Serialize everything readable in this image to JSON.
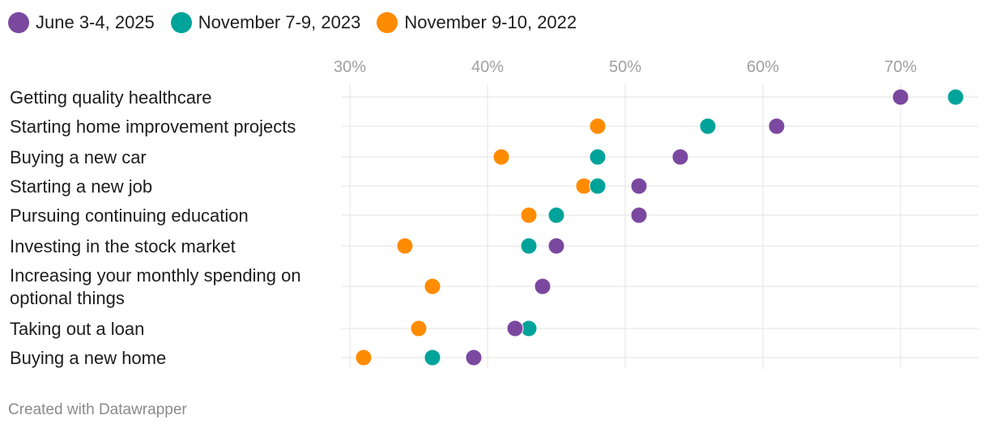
{
  "chart_data": {
    "type": "scatter",
    "orientation": "horizontal-dot-plot",
    "xlim": [
      30,
      75
    ],
    "ticks": [
      {
        "value": 30,
        "label": "30%"
      },
      {
        "value": 40,
        "label": "40%"
      },
      {
        "value": 50,
        "label": "50%"
      },
      {
        "value": 60,
        "label": "60%"
      },
      {
        "value": 70,
        "label": "70%"
      }
    ],
    "grid": true,
    "legend_position": "top-left",
    "categories": [
      [
        "Getting quality healthcare"
      ],
      [
        "Starting home improvement projects"
      ],
      [
        "Buying a new car"
      ],
      [
        "Starting a new job"
      ],
      [
        "Pursuing continuing education"
      ],
      [
        "Investing in the stock market"
      ],
      [
        "Increasing your monthly spending on",
        "optional things"
      ],
      [
        "Taking out a loan"
      ],
      [
        "Buying a new home"
      ]
    ],
    "series": [
      {
        "name": "November 9-10, 2022",
        "color": "#ff8c00",
        "values": [
          70,
          48,
          41,
          47,
          43,
          34,
          36,
          35,
          31
        ]
      },
      {
        "name": "November 7-9, 2023",
        "color": "#00a39a",
        "values": [
          74,
          56,
          48,
          48,
          45,
          43,
          44,
          43,
          36
        ]
      },
      {
        "name": "June 3-4, 2025",
        "color": "#7b48a0",
        "values": [
          70,
          61,
          54,
          51,
          51,
          45,
          44,
          42,
          39
        ]
      }
    ],
    "legend_order": [
      2,
      1,
      0
    ]
  },
  "footer": {
    "credit": "Created with Datawrapper"
  }
}
